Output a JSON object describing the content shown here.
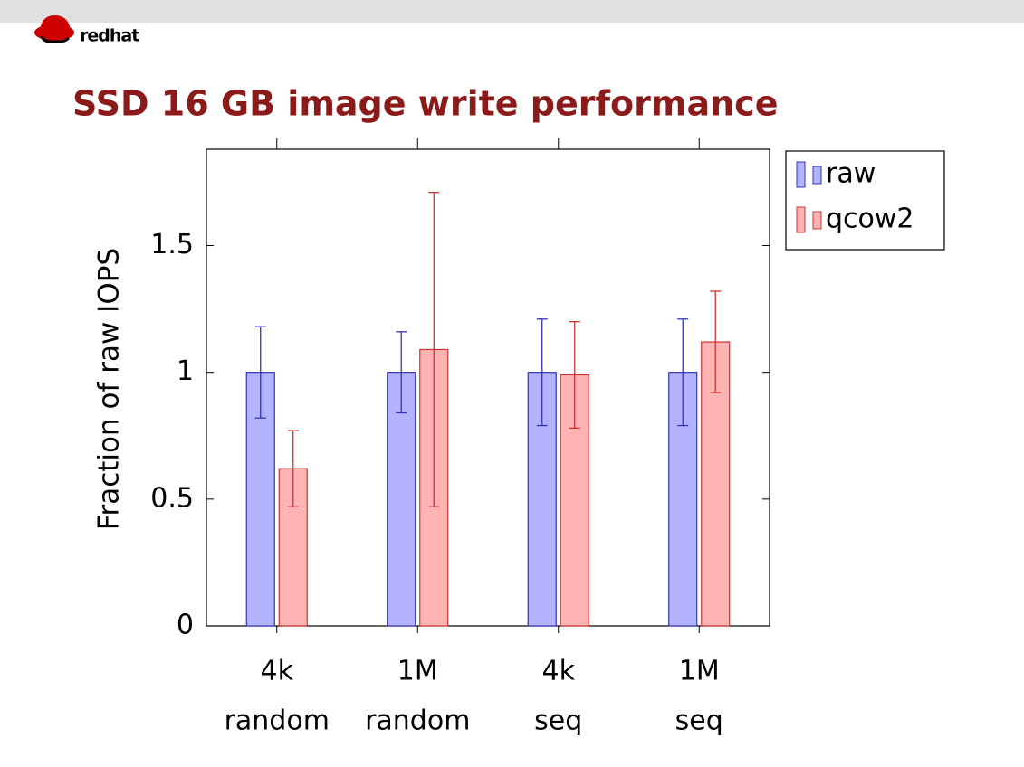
{
  "logo": {
    "text": "redhat"
  },
  "chart_data": {
    "type": "bar",
    "title": "SSD 16 GB image write performance",
    "y_label": "Fraction of raw IOPS",
    "categories": [
      [
        "4k",
        "random"
      ],
      [
        "1M",
        "random"
      ],
      [
        "4k",
        "seq"
      ],
      [
        "1M",
        "seq"
      ]
    ],
    "series": [
      {
        "name": "raw",
        "color": "#b3b3ff",
        "stroke": "#3333b3",
        "values": [
          1,
          1,
          1,
          1
        ],
        "errors": [
          0.18,
          0.16,
          0.21,
          0.21
        ]
      },
      {
        "name": "qcow2",
        "color": "#ffb3b3",
        "stroke": "#cc3333",
        "values": [
          0.62,
          1.09,
          0.99,
          1.12
        ],
        "errors": [
          0.15,
          0.62,
          0.21,
          0.2
        ]
      }
    ],
    "ylim": [
      0,
      1.88
    ],
    "yticks": [
      0,
      0.5,
      1,
      1.5
    ],
    "legend": "outside-top-right"
  }
}
